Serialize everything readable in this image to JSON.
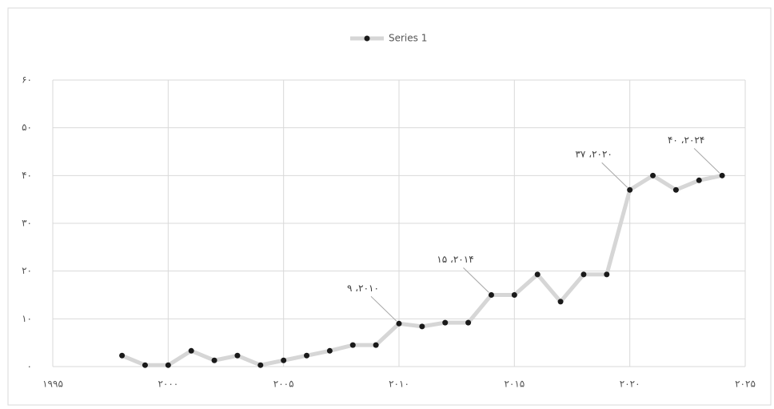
{
  "chart_data": {
    "type": "line",
    "x": [
      1998,
      1999,
      2000,
      2001,
      2002,
      2003,
      2004,
      2005,
      2006,
      2007,
      2008,
      2009,
      2010,
      2011,
      2012,
      2013,
      2014,
      2015,
      2016,
      2017,
      2018,
      2019,
      2020,
      2021,
      2022,
      2023,
      2024
    ],
    "series": [
      {
        "name": "Series 1",
        "color": "#d6d6d6",
        "marker_color": "#1a1a1a",
        "values": [
          2.3,
          0.3,
          0.3,
          3.3,
          1.3,
          2.3,
          0.3,
          1.3,
          2.3,
          3.3,
          4.5,
          4.5,
          9,
          8.4,
          9.2,
          9.2,
          15,
          15,
          19.3,
          13.6,
          19.3,
          19.3,
          37,
          40,
          37,
          39,
          40
        ],
        "value_labels": [
          null,
          null,
          null,
          null,
          null,
          null,
          null,
          null,
          null,
          null,
          null,
          null,
          "۹ ،۲۰۱۰",
          null,
          null,
          null,
          "۱۵ ،۲۰۱۴",
          null,
          null,
          null,
          null,
          null,
          "۳۷ ،۲۰۲۰",
          null,
          null,
          null,
          "۴۰ ،۲۰۲۴"
        ]
      }
    ],
    "xlim": [
      1995,
      2025
    ],
    "xticks": [
      {
        "value": 1995,
        "label": "۱۹۹۵"
      },
      {
        "value": 2000,
        "label": "۲۰۰۰"
      },
      {
        "value": 2005,
        "label": "۲۰۰۵"
      },
      {
        "value": 2010,
        "label": "۲۰۱۰"
      },
      {
        "value": 2015,
        "label": "۲۰۱۵"
      },
      {
        "value": 2020,
        "label": "۲۰۲۰"
      },
      {
        "value": 2025,
        "label": "۲۰۲۵"
      }
    ],
    "ylim": [
      0,
      60
    ],
    "yticks": [
      {
        "value": 0,
        "label": "۰"
      },
      {
        "value": 10,
        "label": "۱۰"
      },
      {
        "value": 20,
        "label": "۲۰"
      },
      {
        "value": 30,
        "label": "۳۰"
      },
      {
        "value": 40,
        "label": "۴۰"
      },
      {
        "value": 50,
        "label": "۵۰"
      },
      {
        "value": 60,
        "label": "۶۰"
      }
    ],
    "grid": true,
    "legend": "top"
  }
}
